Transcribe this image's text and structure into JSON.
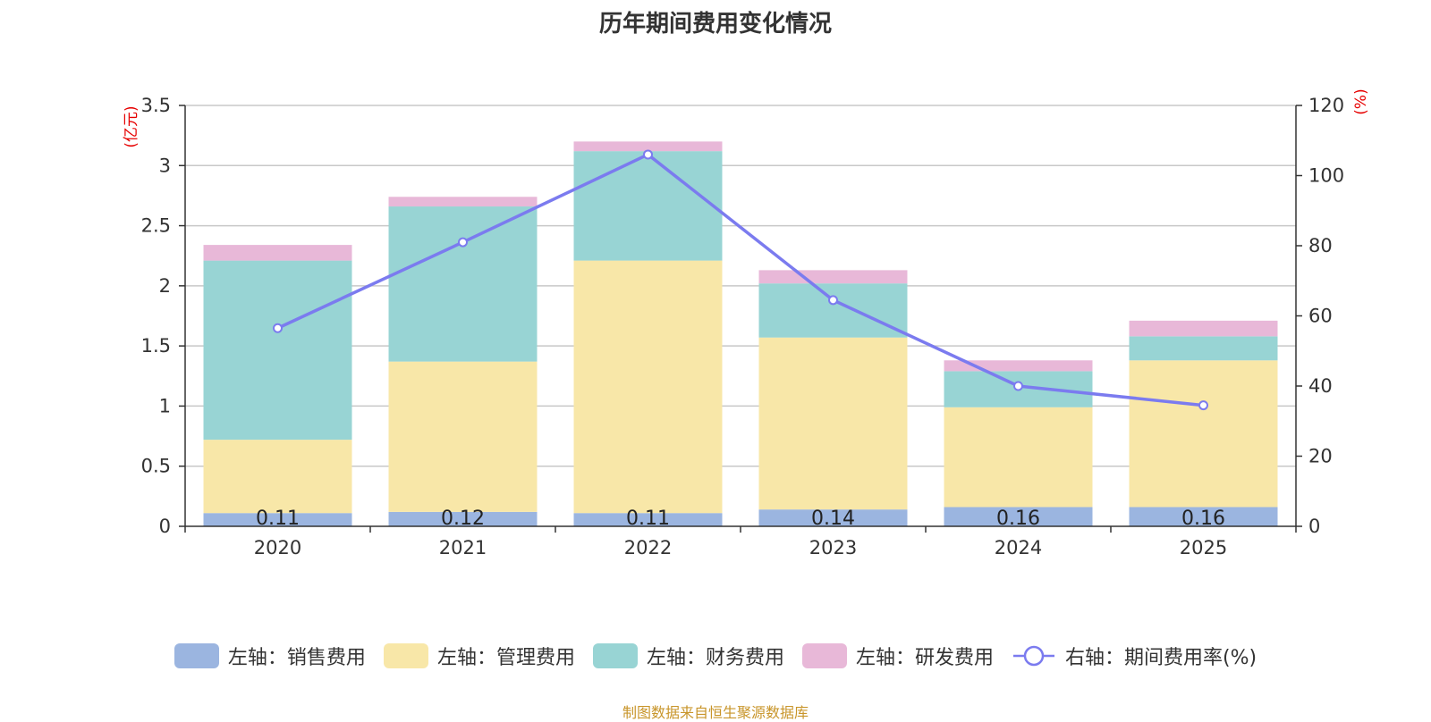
{
  "chart_data": {
    "type": "bar",
    "title": "历年期间费用变化情况",
    "categories": [
      "2020",
      "2021",
      "2022",
      "2023",
      "2024",
      "2025"
    ],
    "left_axis": {
      "unit": "(亿元)",
      "ylim": [
        0,
        3.5
      ],
      "ticks": [
        "0",
        "0.5",
        "1",
        "1.5",
        "2",
        "2.5",
        "3",
        "3.5"
      ]
    },
    "right_axis": {
      "unit": "(%)",
      "ylim": [
        0,
        120
      ],
      "ticks": [
        "0",
        "20",
        "40",
        "60",
        "80",
        "100",
        "120"
      ]
    },
    "series": [
      {
        "name": "左轴：销售费用",
        "type": "bar",
        "color": "#9bb5e0",
        "values": [
          0.11,
          0.12,
          0.11,
          0.14,
          0.16,
          0.16
        ],
        "labels": [
          "0.11",
          "0.12",
          "0.11",
          "0.14",
          "0.16",
          "0.16"
        ]
      },
      {
        "name": "左轴：管理费用",
        "type": "bar",
        "color": "#f8e7a8",
        "values": [
          0.61,
          1.25,
          2.1,
          1.43,
          0.83,
          1.22
        ]
      },
      {
        "name": "左轴：财务费用",
        "type": "bar",
        "color": "#98d4d4",
        "values": [
          1.49,
          1.29,
          0.91,
          0.45,
          0.3,
          0.2
        ]
      },
      {
        "name": "左轴：研发费用",
        "type": "bar",
        "color": "#e8b8d8",
        "values": [
          0.13,
          0.08,
          0.08,
          0.11,
          0.09,
          0.13
        ]
      },
      {
        "name": "右轴：期间费用率(%)",
        "type": "line",
        "color": "#7b7bef",
        "values": [
          56.5,
          81,
          106,
          64.5,
          40,
          34.5
        ]
      }
    ],
    "grid": true
  },
  "source": "制图数据来自恒生聚源数据库"
}
